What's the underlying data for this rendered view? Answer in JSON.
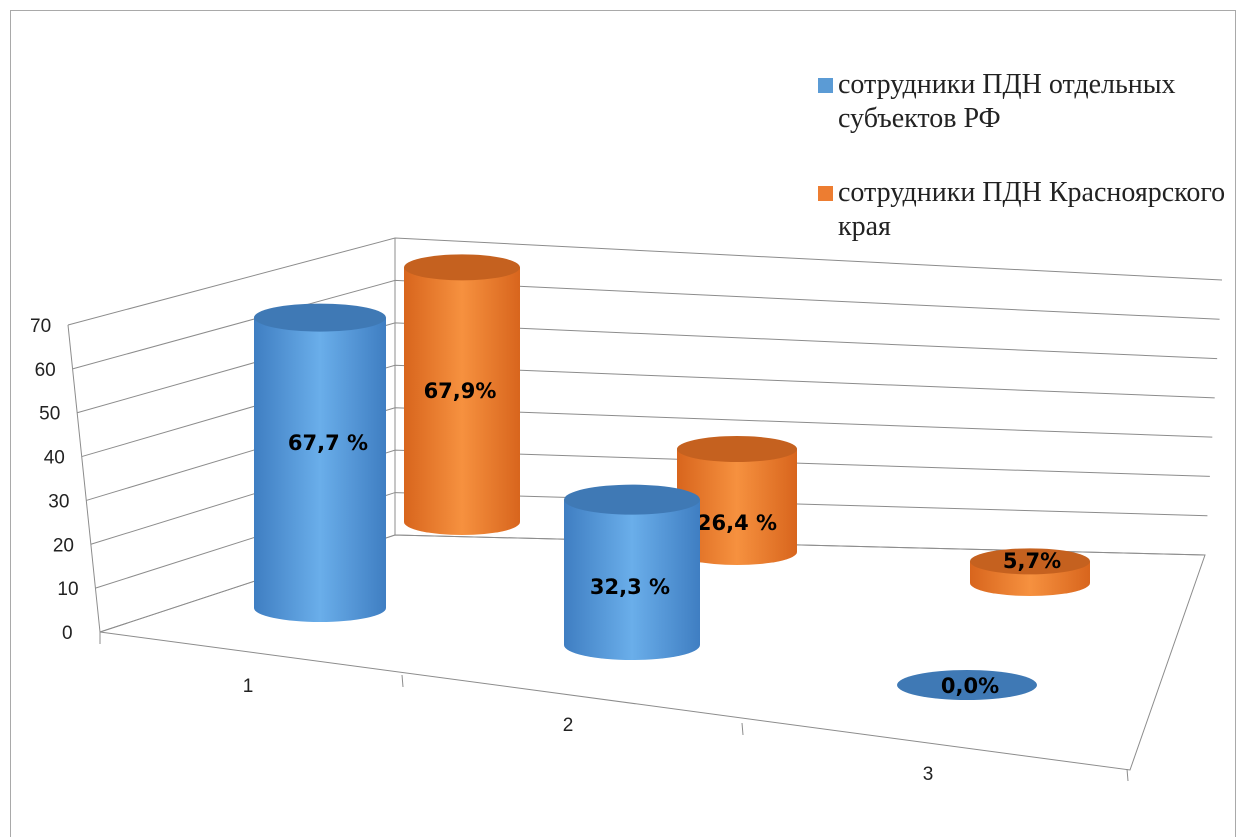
{
  "colors": {
    "series_1": "#5b9bd5",
    "series_2": "#ed7d31"
  },
  "chart_data": {
    "type": "bar",
    "style": "3d-cylinder",
    "categories": [
      "1",
      "2",
      "3"
    ],
    "series": [
      {
        "name": "сотрудники ПДН отдельных субъектов  РФ",
        "values": [
          67.7,
          32.3,
          0.0
        ],
        "labels": [
          "67,7 %",
          "32,3 %",
          "0,0%"
        ]
      },
      {
        "name": "сотрудники ПДН Красноярского края",
        "values": [
          67.9,
          26.4,
          5.7
        ],
        "labels": [
          "67,9%",
          "26,4 %",
          "5,7%"
        ]
      }
    ],
    "ylim": [
      0,
      70
    ],
    "yticks": [
      "0",
      "10",
      "20",
      "30",
      "40",
      "50",
      "60",
      "70"
    ],
    "grid": true,
    "legend_position": "top-right"
  }
}
